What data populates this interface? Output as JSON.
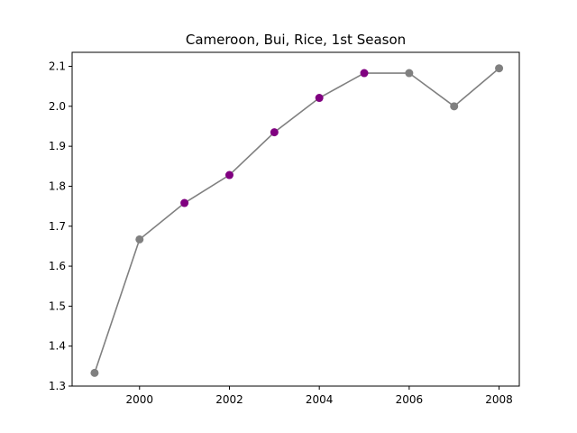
{
  "chart_data": {
    "type": "line",
    "title": "Cameroon, Bui, Rice, 1st Season",
    "xlabel": "",
    "ylabel": "",
    "xlim": [
      1998.5,
      2008.45
    ],
    "ylim": [
      1.3,
      2.135
    ],
    "xticks": [
      2000,
      2002,
      2004,
      2006,
      2008
    ],
    "yticks": [
      1.3,
      1.4,
      1.5,
      1.6,
      1.7,
      1.8,
      1.9,
      2.0,
      2.1
    ],
    "grid": false,
    "x": [
      1999,
      2000,
      2001,
      2002,
      2003,
      2004,
      2005,
      2006,
      2007,
      2008
    ],
    "series": [
      {
        "values": [
          1.333,
          1.667,
          1.758,
          1.828,
          1.935,
          2.021,
          2.083,
          2.083,
          2.0,
          2.095
        ],
        "line_color": "#808080",
        "point_colors": [
          "#808080",
          "#808080",
          "#800080",
          "#800080",
          "#800080",
          "#800080",
          "#800080",
          "#808080",
          "#808080",
          "#808080"
        ]
      }
    ]
  }
}
